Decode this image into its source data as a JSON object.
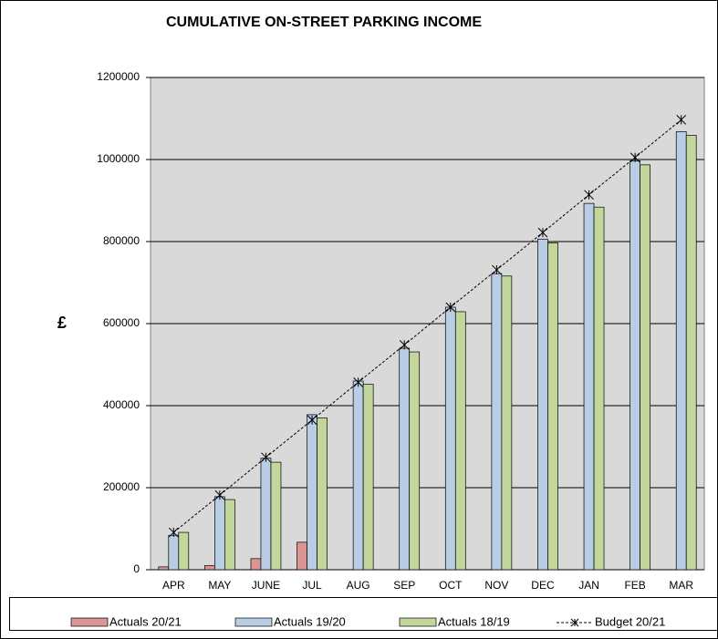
{
  "chart_data": {
    "type": "bar",
    "title": "CUMULATIVE ON-STREET PARKING INCOME",
    "y_label": "£",
    "categories": [
      "APR",
      "MAY",
      "JUNE",
      "JUL",
      "AUG",
      "SEP",
      "OCT",
      "NOV",
      "DEC",
      "JAN",
      "FEB",
      "MAR"
    ],
    "series": [
      {
        "name": "Actuals 20/21",
        "color": "#d99694",
        "values": [
          7000,
          10000,
          27000,
          67000,
          null,
          null,
          null,
          null,
          null,
          null,
          null,
          null
        ]
      },
      {
        "name": "Actuals 19/20",
        "color": "#b9cde5",
        "values": [
          84000,
          178000,
          272000,
          378000,
          460000,
          540000,
          640000,
          722000,
          806000,
          893000,
          997000,
          1068000
        ]
      },
      {
        "name": "Actuals 18/19",
        "color": "#c3d69b",
        "values": [
          91000,
          171000,
          262000,
          370000,
          452000,
          531000,
          629000,
          716000,
          797000,
          884000,
          987000,
          1059000
        ]
      },
      {
        "name": "Budget  20/21",
        "type": "line",
        "color": "#000000",
        "values": [
          91000,
          182000,
          274000,
          365000,
          457000,
          548000,
          640000,
          731000,
          822000,
          914000,
          1005000,
          1097000
        ]
      }
    ],
    "ylim": [
      0,
      1200000
    ],
    "yticks": [
      0,
      200000,
      400000,
      600000,
      800000,
      1000000,
      1200000
    ],
    "grid": true,
    "legend": "bottom"
  }
}
